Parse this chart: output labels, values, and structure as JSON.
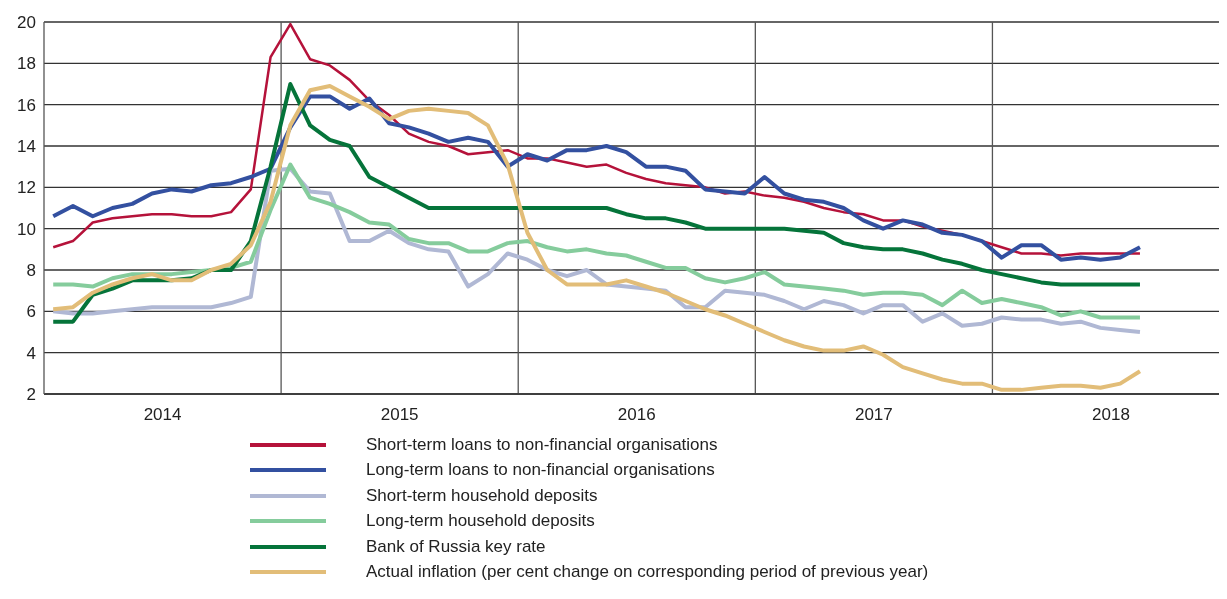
{
  "chart_data": {
    "type": "line",
    "x": [
      "2014-01-15",
      "2014-02-15",
      "2014-03-15",
      "2014-04-15",
      "2014-05-15",
      "2014-06-15",
      "2014-07-15",
      "2014-08-15",
      "2014-09-15",
      "2014-10-15",
      "2014-11-15",
      "2014-12-15",
      "2015-01-15",
      "2015-02-15",
      "2015-03-15",
      "2015-04-15",
      "2015-05-15",
      "2015-06-15",
      "2015-07-15",
      "2015-08-15",
      "2015-09-15",
      "2015-10-15",
      "2015-11-15",
      "2015-12-15",
      "2016-01-15",
      "2016-02-15",
      "2016-03-15",
      "2016-04-15",
      "2016-05-15",
      "2016-06-15",
      "2016-07-15",
      "2016-08-15",
      "2016-09-15",
      "2016-10-15",
      "2016-11-15",
      "2016-12-15",
      "2017-01-15",
      "2017-02-15",
      "2017-03-15",
      "2017-04-15",
      "2017-05-15",
      "2017-06-15",
      "2017-07-15",
      "2017-08-15",
      "2017-09-15",
      "2017-10-15",
      "2017-11-15",
      "2017-12-15",
      "2018-01-15",
      "2018-02-15",
      "2018-03-15",
      "2018-04-15",
      "2018-05-15",
      "2018-06-15",
      "2018-07-15",
      "2018-08-15"
    ],
    "series": [
      {
        "name": "Short-term loans to non-financial organisations",
        "color": "#b5123a",
        "values": [
          9.1,
          9.4,
          10.3,
          10.5,
          10.6,
          10.7,
          10.7,
          10.6,
          10.6,
          10.8,
          11.9,
          18.3,
          19.9,
          18.2,
          17.9,
          17.2,
          16.2,
          15.5,
          14.6,
          14.2,
          14.0,
          13.6,
          13.7,
          13.8,
          13.4,
          13.4,
          13.2,
          13.0,
          13.1,
          12.7,
          12.4,
          12.2,
          12.1,
          12.0,
          11.7,
          11.8,
          11.6,
          11.5,
          11.3,
          11.0,
          10.8,
          10.7,
          10.4,
          10.4,
          10.1,
          9.9,
          9.7,
          9.4,
          9.1,
          8.8,
          8.8,
          8.7,
          8.8,
          8.8,
          8.8,
          8.8
        ]
      },
      {
        "name": "Long-term loans to non-financial organisations",
        "color": "#3350a0",
        "values": [
          10.6,
          11.1,
          10.6,
          11.0,
          11.2,
          11.7,
          11.9,
          11.8,
          12.1,
          12.2,
          12.5,
          12.9,
          14.9,
          16.4,
          16.4,
          15.8,
          16.3,
          15.1,
          14.9,
          14.6,
          14.2,
          14.4,
          14.2,
          13.0,
          13.6,
          13.3,
          13.8,
          13.8,
          14.0,
          13.7,
          13.0,
          13.0,
          12.8,
          11.9,
          11.8,
          11.7,
          12.5,
          11.7,
          11.4,
          11.3,
          11.0,
          10.4,
          10.0,
          10.4,
          10.2,
          9.8,
          9.7,
          9.4,
          8.6,
          9.2,
          9.2,
          8.5,
          8.6,
          8.5,
          8.6,
          9.1
        ]
      },
      {
        "name": "Short-term household deposits",
        "color": "#b0b8d4",
        "values": [
          6.0,
          5.9,
          5.9,
          6.0,
          6.1,
          6.2,
          6.2,
          6.2,
          6.2,
          6.4,
          6.7,
          12.8,
          12.9,
          11.8,
          11.7,
          9.4,
          9.4,
          9.9,
          9.3,
          9.0,
          8.9,
          7.2,
          7.8,
          8.8,
          8.5,
          8.0,
          7.7,
          8.0,
          7.3,
          7.2,
          7.1,
          7.0,
          6.2,
          6.2,
          7.0,
          6.9,
          6.8,
          6.5,
          6.1,
          6.5,
          6.3,
          5.9,
          6.3,
          6.3,
          5.5,
          5.9,
          5.3,
          5.4,
          5.7,
          5.6,
          5.6,
          5.4,
          5.5,
          5.2,
          5.1,
          5.0
        ]
      },
      {
        "name": "Long-term household deposits",
        "color": "#85cc9c",
        "values": [
          7.3,
          7.3,
          7.2,
          7.6,
          7.8,
          7.8,
          7.8,
          7.9,
          8.0,
          8.1,
          8.4,
          10.9,
          13.1,
          11.5,
          11.2,
          10.8,
          10.3,
          10.2,
          9.5,
          9.3,
          9.3,
          8.9,
          8.9,
          9.3,
          9.4,
          9.1,
          8.9,
          9.0,
          8.8,
          8.7,
          8.4,
          8.1,
          8.1,
          7.6,
          7.4,
          7.6,
          7.9,
          7.3,
          7.2,
          7.1,
          7.0,
          6.8,
          6.9,
          6.9,
          6.8,
          6.3,
          7.0,
          6.4,
          6.6,
          6.4,
          6.2,
          5.8,
          6.0,
          5.7,
          5.7,
          5.7
        ]
      },
      {
        "name": "Bank of Russia key rate",
        "color": "#05743a",
        "values": [
          5.5,
          5.5,
          6.8,
          7.1,
          7.5,
          7.5,
          7.5,
          7.6,
          8.0,
          8.0,
          9.4,
          13.0,
          17.0,
          15.0,
          14.3,
          14.0,
          12.5,
          12.0,
          11.5,
          11.0,
          11.0,
          11.0,
          11.0,
          11.0,
          11.0,
          11.0,
          11.0,
          11.0,
          11.0,
          10.7,
          10.5,
          10.5,
          10.3,
          10.0,
          10.0,
          10.0,
          10.0,
          10.0,
          9.9,
          9.8,
          9.3,
          9.1,
          9.0,
          9.0,
          8.8,
          8.5,
          8.3,
          8.0,
          7.8,
          7.6,
          7.4,
          7.3,
          7.3,
          7.3,
          7.3,
          7.3
        ]
      },
      {
        "name": "Actual inflation (per cent change on corresponding period of previous year)",
        "color": "#e2bd78",
        "values": [
          6.1,
          6.2,
          6.9,
          7.3,
          7.6,
          7.8,
          7.5,
          7.5,
          8.0,
          8.3,
          9.2,
          11.3,
          15.0,
          16.7,
          16.9,
          16.4,
          15.9,
          15.3,
          15.7,
          15.8,
          15.7,
          15.6,
          15.0,
          13.1,
          9.8,
          8.0,
          7.3,
          7.3,
          7.3,
          7.5,
          7.2,
          6.9,
          6.5,
          6.1,
          5.8,
          5.4,
          5.0,
          4.6,
          4.3,
          4.1,
          4.1,
          4.3,
          3.9,
          3.3,
          3.0,
          2.7,
          2.5,
          2.5,
          2.2,
          2.2,
          2.3,
          2.4,
          2.4,
          2.3,
          2.5,
          3.1
        ]
      }
    ],
    "xlim": [
      "2014-01-01",
      "2018-12-15"
    ],
    "xticks": [
      {
        "value": "2014-07-01",
        "label": "2014"
      },
      {
        "value": "2015-01-01",
        "label": null
      },
      {
        "value": "2015-07-01",
        "label": "2015"
      },
      {
        "value": "2016-01-01",
        "label": null
      },
      {
        "value": "2016-07-01",
        "label": "2016"
      },
      {
        "value": "2017-01-01",
        "label": null
      },
      {
        "value": "2017-07-01",
        "label": "2017"
      },
      {
        "value": "2018-01-01",
        "label": null
      },
      {
        "value": "2018-07-01",
        "label": "2018"
      }
    ],
    "ylim": [
      2,
      20
    ],
    "yticks": [
      2,
      4,
      6,
      8,
      10,
      12,
      14,
      16,
      18,
      20
    ],
    "grid": true,
    "legend": "bottom",
    "marker": "none",
    "line_style": "solid"
  }
}
